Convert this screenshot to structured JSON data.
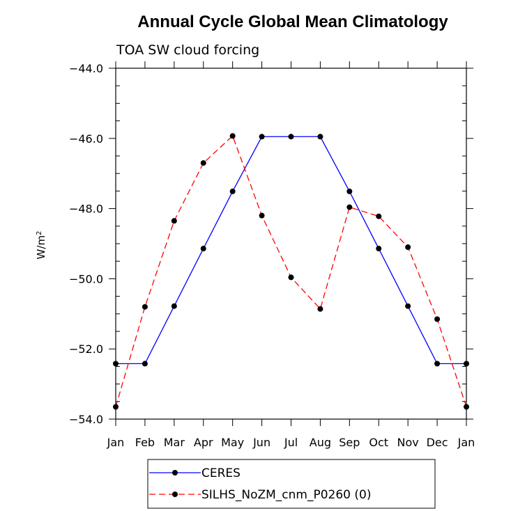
{
  "chart_data": {
    "type": "line",
    "title": "Annual Cycle Global Mean Climatology",
    "subtitle": "TOA SW cloud forcing",
    "ylabel_base": "W/m",
    "ylabel_sup": "2",
    "xlabel": "",
    "ylim": [
      -54.0,
      -44.0
    ],
    "yticks": [
      -54.0,
      -52.0,
      -50.0,
      -48.0,
      -46.0,
      -44.0
    ],
    "ytick_labels": [
      "−54.0",
      "−52.0",
      "−50.0",
      "−48.0",
      "−46.0",
      "−44.0"
    ],
    "categories": [
      "Jan",
      "Feb",
      "Mar",
      "Apr",
      "May",
      "Jun",
      "Jul",
      "Aug",
      "Sep",
      "Oct",
      "Nov",
      "Dec",
      "Jan"
    ],
    "series": [
      {
        "name": "CERES",
        "color": "#0000ff",
        "dash": "solid",
        "values": [
          -52.42,
          -52.42,
          -50.78,
          -49.14,
          -47.51,
          -45.95,
          -45.95,
          -45.95,
          -47.51,
          -49.14,
          -50.78,
          -52.42,
          -52.42
        ]
      },
      {
        "name": "SILHS_NoZM_cnm_P0260 (0)",
        "color": "#ff0000",
        "dash": "dashed",
        "values": [
          -53.65,
          -50.8,
          -48.35,
          -46.7,
          -45.93,
          -48.2,
          -49.96,
          -50.86,
          -47.96,
          -48.22,
          -49.1,
          -51.15,
          -53.65
        ]
      }
    ]
  }
}
